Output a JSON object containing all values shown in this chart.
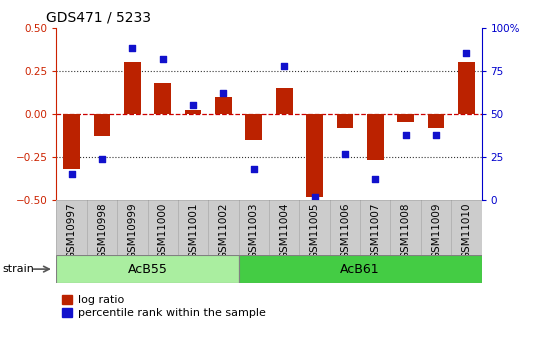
{
  "title": "GDS471 / 5233",
  "samples": [
    "GSM10997",
    "GSM10998",
    "GSM10999",
    "GSM11000",
    "GSM11001",
    "GSM11002",
    "GSM11003",
    "GSM11004",
    "GSM11005",
    "GSM11006",
    "GSM11007",
    "GSM11008",
    "GSM11009",
    "GSM11010"
  ],
  "log_ratio": [
    -0.32,
    -0.13,
    0.3,
    0.18,
    0.02,
    0.1,
    -0.15,
    0.15,
    -0.48,
    -0.08,
    -0.27,
    -0.05,
    -0.08,
    0.3
  ],
  "percentile": [
    15,
    24,
    88,
    82,
    55,
    62,
    18,
    78,
    2,
    27,
    12,
    38,
    38,
    85
  ],
  "groups": [
    {
      "label": "AcB55",
      "start": 0,
      "end": 6,
      "color": "#90EE90"
    },
    {
      "label": "AcB61",
      "start": 6,
      "end": 14,
      "color": "#32CD32"
    }
  ],
  "bar_color": "#BB2200",
  "dot_color": "#1111CC",
  "zero_line_color": "#CC0000",
  "dotted_line_color": "#333333",
  "ylim": [
    -0.5,
    0.5
  ],
  "y2lim": [
    0,
    100
  ],
  "yticks_left": [
    -0.5,
    -0.25,
    0,
    0.25,
    0.5
  ],
  "yticks_right": [
    0,
    25,
    50,
    75,
    100
  ],
  "hlines": [
    0.25,
    -0.25
  ],
  "bar_width": 0.55,
  "bg_color": "#ffffff",
  "tick_label_fontsize": 7.5,
  "title_fontsize": 10,
  "legend_fontsize": 8,
  "group_label_fontsize": 9,
  "strain_label": "strain",
  "xlabel_color": "#333333",
  "left_axis_color": "#CC2200",
  "right_axis_color": "#0000CC",
  "xtick_bg": "#CCCCCC",
  "group1_color": "#AAEEA0",
  "group2_color": "#44CC44"
}
